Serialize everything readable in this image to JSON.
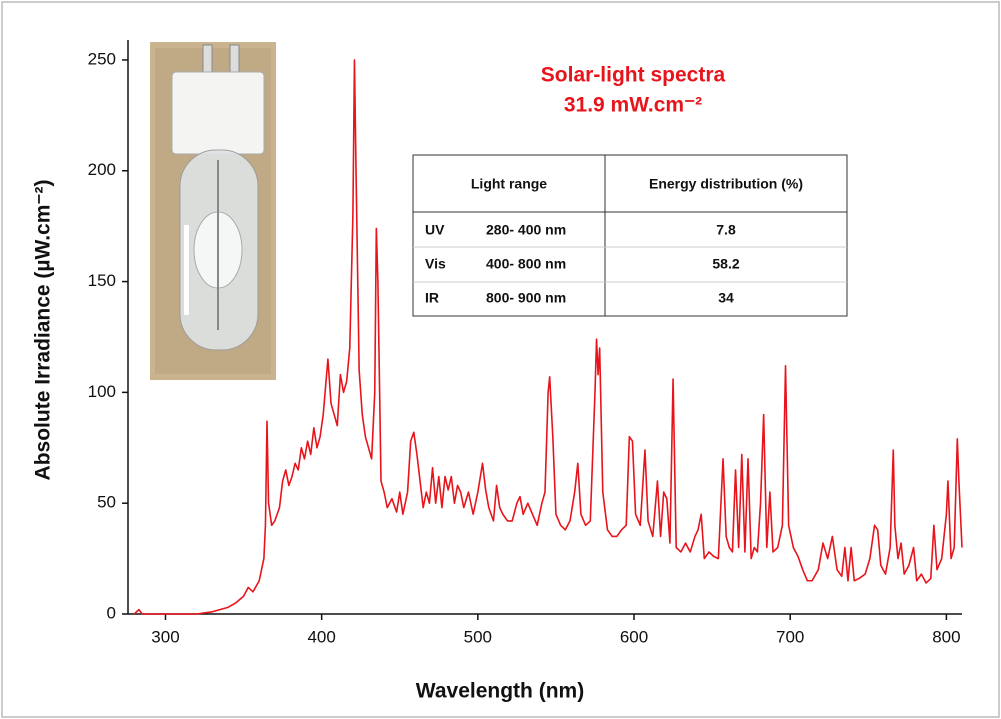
{
  "chart_data": {
    "type": "line",
    "title": "Solar-light spectra",
    "subtitle": "31.9 mW.cm⁻²",
    "x_label": "Wavelength (nm)",
    "y_label": "Absolute Irradiance (µW.cm⁻²)",
    "color": "#e8141b",
    "xlim": [
      276,
      810
    ],
    "ylim": [
      0,
      259
    ],
    "xticks": [
      300,
      400,
      500,
      600,
      700,
      800
    ],
    "yticks": [
      0,
      50,
      100,
      150,
      200,
      250
    ],
    "x": [
      280,
      283,
      285,
      300,
      320,
      330,
      340,
      345,
      350,
      353,
      356,
      360,
      363,
      364,
      365,
      366,
      368,
      370,
      373,
      375,
      377,
      379,
      381,
      383,
      385,
      387,
      389,
      391,
      393,
      395,
      397,
      399,
      401,
      404,
      406,
      408,
      410,
      412,
      414,
      416,
      418,
      420,
      421,
      422,
      424,
      426,
      428,
      430,
      432,
      434,
      435,
      436,
      438,
      440,
      442,
      445,
      448,
      450,
      452,
      455,
      457,
      459,
      461,
      463,
      465,
      467,
      469,
      471,
      473,
      475,
      477,
      479,
      481,
      483,
      485,
      487,
      489,
      491,
      494,
      497,
      500,
      503,
      505,
      507,
      510,
      512,
      514,
      516,
      519,
      522,
      525,
      527,
      529,
      532,
      535,
      538,
      541,
      543,
      545,
      546,
      548,
      550,
      553,
      556,
      559,
      562,
      564,
      566,
      569,
      572,
      575,
      576,
      577,
      578,
      580,
      583,
      586,
      589,
      592,
      595,
      597,
      599,
      601,
      604,
      607,
      609,
      612,
      615,
      617,
      619,
      621,
      623,
      625,
      627,
      630,
      633,
      636,
      639,
      641,
      643,
      645,
      648,
      651,
      654,
      657,
      659,
      661,
      663,
      665,
      667,
      669,
      671,
      673,
      675,
      677,
      679,
      681,
      683,
      685,
      687,
      689,
      692,
      695,
      697,
      699,
      702,
      705,
      708,
      711,
      714,
      718,
      721,
      724,
      727,
      730,
      733,
      735,
      737,
      739,
      741,
      744,
      748,
      751,
      754,
      756,
      758,
      761,
      764,
      766,
      767,
      769,
      771,
      773,
      776,
      779,
      781,
      784,
      787,
      790,
      792,
      794,
      797,
      800,
      801,
      803,
      805,
      807,
      808,
      810
    ],
    "values": [
      0,
      2,
      0,
      0,
      0,
      1,
      3,
      5,
      8,
      12,
      10,
      15,
      25,
      40,
      87,
      50,
      40,
      42,
      48,
      60,
      65,
      58,
      62,
      68,
      65,
      75,
      70,
      78,
      72,
      84,
      75,
      80,
      90,
      115,
      95,
      90,
      85,
      108,
      100,
      105,
      120,
      180,
      250,
      200,
      110,
      90,
      80,
      75,
      70,
      100,
      174,
      150,
      60,
      55,
      48,
      52,
      46,
      55,
      45,
      55,
      78,
      82,
      72,
      60,
      48,
      55,
      50,
      66,
      50,
      62,
      48,
      62,
      56,
      62,
      50,
      58,
      55,
      48,
      55,
      45,
      55,
      68,
      56,
      48,
      42,
      58,
      48,
      45,
      42,
      42,
      50,
      53,
      45,
      50,
      45,
      40,
      50,
      55,
      100,
      107,
      80,
      45,
      40,
      38,
      42,
      55,
      68,
      45,
      40,
      42,
      100,
      124,
      108,
      120,
      55,
      38,
      35,
      35,
      38,
      40,
      80,
      78,
      45,
      40,
      74,
      42,
      35,
      60,
      35,
      55,
      52,
      32,
      106,
      30,
      28,
      32,
      28,
      35,
      38,
      45,
      25,
      28,
      26,
      25,
      70,
      35,
      30,
      28,
      65,
      30,
      72,
      28,
      70,
      25,
      30,
      28,
      50,
      90,
      30,
      55,
      28,
      30,
      40,
      112,
      40,
      30,
      26,
      20,
      15,
      15,
      20,
      32,
      25,
      35,
      20,
      17,
      30,
      15,
      30,
      15,
      16,
      18,
      25,
      40,
      38,
      22,
      18,
      30,
      74,
      40,
      25,
      32,
      18,
      22,
      30,
      15,
      18,
      14,
      16,
      40,
      20,
      25,
      45,
      60,
      25,
      30,
      79,
      60,
      30
    ],
    "table": {
      "header": [
        "Light range",
        "Energy distribution (%)"
      ],
      "rows": [
        [
          "UV",
          "280- 400 nm",
          7.8
        ],
        [
          "Vis",
          "400- 800 nm",
          58.2
        ],
        [
          "IR",
          "800- 900 nm",
          34
        ]
      ]
    }
  }
}
